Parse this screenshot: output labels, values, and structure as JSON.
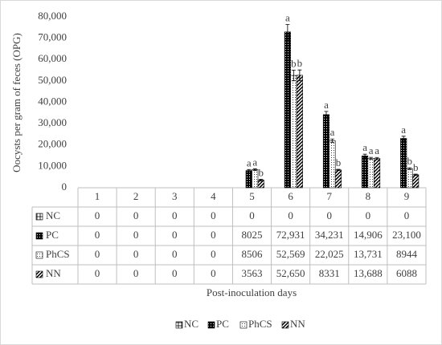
{
  "chart_data": {
    "type": "bar",
    "y_label": "Oocysts per gram of feces (OPG)",
    "x_label": "Post-inoculation days",
    "categories": [
      "1",
      "2",
      "3",
      "4",
      "5",
      "6",
      "7",
      "8",
      "9"
    ],
    "ylim": [
      0,
      80000
    ],
    "yticks": [
      0,
      {
        "value": 10000,
        "label": "10,000"
      },
      {
        "value": 20000,
        "label": "20,000"
      },
      {
        "value": 30000,
        "label": "30,000"
      },
      {
        "value": 40000,
        "label": "40,000"
      },
      {
        "value": 50000,
        "label": "50,000"
      },
      {
        "value": 60000,
        "label": "60,000"
      },
      {
        "value": 70000,
        "label": "70,000"
      },
      {
        "value": 80000,
        "label": "80,000"
      }
    ],
    "grid": false,
    "series": [
      {
        "name": "NC",
        "color": "#000000",
        "values": [
          0,
          0,
          0,
          0,
          0,
          0,
          0,
          0,
          0
        ],
        "value_labels": [
          "0",
          "0",
          "0",
          "0",
          "0",
          "0",
          "0",
          "0",
          "0"
        ],
        "errors": [
          null,
          null,
          null,
          null,
          null,
          null,
          null,
          null,
          null
        ],
        "letters": [
          null,
          null,
          null,
          null,
          null,
          null,
          null,
          null,
          null
        ]
      },
      {
        "name": "PC",
        "color": "#000000",
        "values": [
          0,
          0,
          0,
          0,
          8025,
          72931,
          34231,
          14906,
          23100
        ],
        "value_labels": [
          "0",
          "0",
          "0",
          "0",
          "8025",
          "72,931",
          "34,231",
          "14,906",
          "23,100"
        ],
        "errors": [
          null,
          null,
          null,
          null,
          500,
          3500,
          1500,
          800,
          1000
        ],
        "letters": [
          null,
          null,
          null,
          null,
          "a",
          "a",
          "a",
          "a",
          "a"
        ]
      },
      {
        "name": "PhCS",
        "color": "#000000",
        "values": [
          0,
          0,
          0,
          0,
          8506,
          52569,
          22025,
          13731,
          8944
        ],
        "value_labels": [
          "0",
          "0",
          "0",
          "0",
          "8506",
          "52,569",
          "22,025",
          "13,731",
          "8944"
        ],
        "errors": [
          null,
          null,
          null,
          null,
          400,
          2500,
          800,
          500,
          400
        ],
        "letters": [
          null,
          null,
          null,
          null,
          "a",
          "b",
          "a",
          "a",
          "b"
        ]
      },
      {
        "name": "NN",
        "color": "#000000",
        "values": [
          0,
          0,
          0,
          0,
          3563,
          52650,
          8331,
          13688,
          6088
        ],
        "value_labels": [
          "0",
          "0",
          "0",
          "0",
          "3563",
          "52,650",
          "8331",
          "13,688",
          "6088"
        ],
        "errors": [
          null,
          null,
          null,
          null,
          400,
          2500,
          300,
          500,
          300
        ],
        "letters": [
          null,
          null,
          null,
          null,
          "b",
          "b",
          "b",
          "a",
          "b"
        ]
      }
    ]
  }
}
